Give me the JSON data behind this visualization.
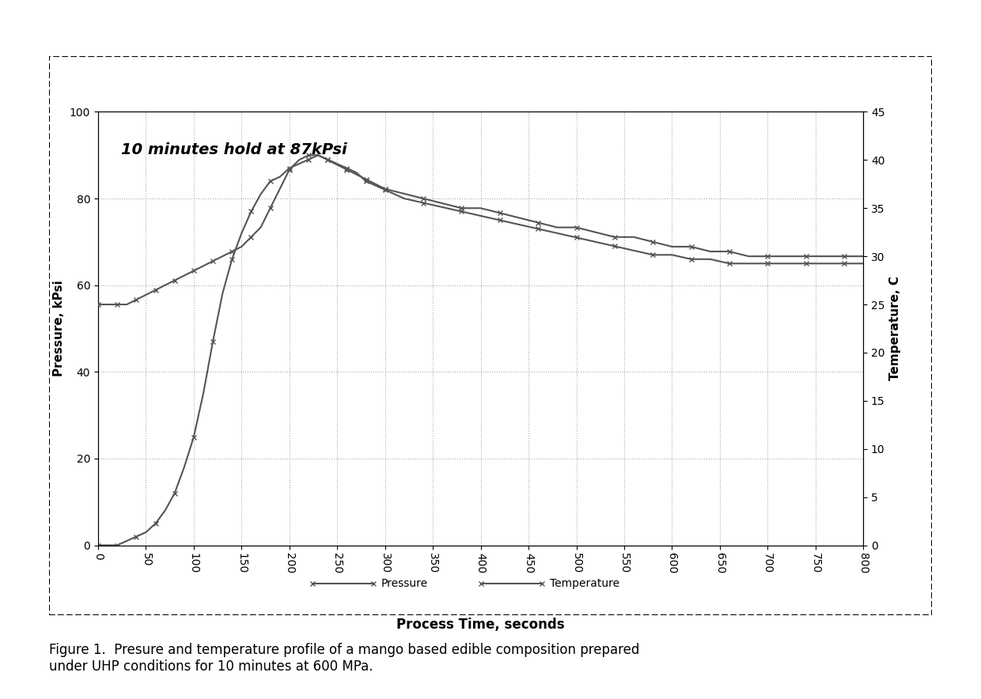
{
  "title_annotation": "10 minutes hold at 87kPsi",
  "xlabel": "Process Time, seconds",
  "ylabel_left": "Pressure, kPsi",
  "ylabel_right": "Temperature, C",
  "figure_caption": "Figure 1.  Presure and temperature profile of a mango based edible composition prepared\nunder UHP conditions for 10 minutes at 600 MPa.",
  "xlim": [
    0,
    800
  ],
  "ylim_left": [
    0,
    100
  ],
  "ylim_right": [
    0,
    45
  ],
  "xticks": [
    0,
    50,
    100,
    150,
    200,
    250,
    300,
    350,
    400,
    450,
    500,
    550,
    600,
    650,
    700,
    750,
    800
  ],
  "yticks_left": [
    0,
    20,
    40,
    60,
    80,
    100
  ],
  "yticks_right": [
    0,
    5,
    10,
    15,
    20,
    25,
    30,
    35,
    40,
    45
  ],
  "pressure_x": [
    0,
    10,
    20,
    30,
    40,
    50,
    60,
    70,
    80,
    90,
    100,
    110,
    120,
    130,
    140,
    150,
    160,
    170,
    180,
    190,
    200,
    210,
    220,
    230,
    240,
    250,
    260,
    270,
    280,
    290,
    300,
    320,
    340,
    360,
    380,
    400,
    420,
    440,
    460,
    480,
    500,
    520,
    540,
    560,
    580,
    600,
    620,
    640,
    660,
    680,
    700,
    720,
    740,
    760,
    780,
    800
  ],
  "pressure_y": [
    0,
    0,
    0,
    1,
    2,
    3,
    5,
    8,
    12,
    18,
    25,
    35,
    47,
    58,
    66,
    72,
    77,
    81,
    84,
    85,
    87,
    88,
    89,
    90,
    89,
    88,
    87,
    86,
    84,
    83,
    82,
    80,
    79,
    78,
    77,
    76,
    75,
    74,
    73,
    72,
    71,
    70,
    69,
    68,
    67,
    67,
    66,
    66,
    65,
    65,
    65,
    65,
    65,
    65,
    65,
    65
  ],
  "temperature_x": [
    0,
    10,
    20,
    30,
    40,
    50,
    60,
    70,
    80,
    90,
    100,
    110,
    120,
    130,
    140,
    150,
    160,
    170,
    180,
    190,
    200,
    210,
    220,
    230,
    240,
    250,
    260,
    270,
    280,
    290,
    300,
    320,
    340,
    360,
    380,
    400,
    420,
    440,
    460,
    480,
    500,
    520,
    540,
    560,
    580,
    600,
    620,
    640,
    660,
    680,
    700,
    720,
    740,
    760,
    780,
    800
  ],
  "temperature_y": [
    25,
    25,
    25,
    25,
    25.5,
    26,
    26.5,
    27,
    27.5,
    28,
    28.5,
    29,
    29.5,
    30,
    30.5,
    31,
    32,
    33,
    35,
    37,
    39,
    40,
    40.5,
    40.5,
    40,
    39.5,
    39,
    38.5,
    38,
    37.5,
    37,
    36.5,
    36,
    35.5,
    35,
    35,
    34.5,
    34,
    33.5,
    33,
    33,
    32.5,
    32,
    32,
    31.5,
    31,
    31,
    30.5,
    30.5,
    30,
    30,
    30,
    30,
    30,
    30,
    30
  ],
  "line_color": "#555555",
  "bg_color": "#ffffff",
  "plot_bg_color": "#ffffff",
  "border_color": "#000000",
  "grid_color": "#aaaaaa",
  "legend_label_pressure": "Pressure",
  "legend_label_temperature": "Temperature"
}
